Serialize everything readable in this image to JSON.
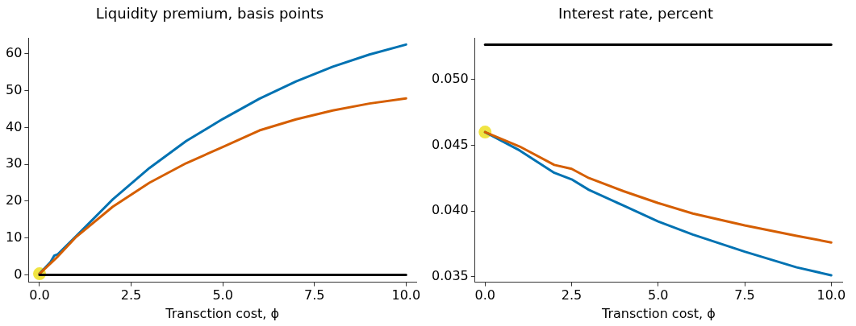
{
  "chart_data": [
    {
      "type": "line",
      "title": "Liquidity premium, basis points",
      "xlabel": "Transction cost, ϕ",
      "xlim": [
        -0.3,
        10.28
      ],
      "xticks": [
        {
          "value": 0,
          "label": "0.0"
        },
        {
          "value": 2.5,
          "label": "2.5"
        },
        {
          "value": 5,
          "label": "5.0"
        },
        {
          "value": 7.5,
          "label": "7.5"
        },
        {
          "value": 10,
          "label": "10.0"
        }
      ],
      "ylim": [
        -2,
        64.2
      ],
      "yticks": [
        0,
        10,
        20,
        30,
        40,
        50,
        60
      ],
      "grid": false,
      "legend": false,
      "series": [
        {
          "color": "#000000",
          "x": [
            0,
            10
          ],
          "values": [
            0,
            0
          ]
        },
        {
          "color": "#d55e00",
          "x": [
            0,
            0.5,
            1,
            2,
            3,
            4,
            5,
            6,
            7,
            8,
            9,
            10
          ],
          "values": [
            0.3,
            5,
            10.3,
            18.5,
            25,
            30.3,
            34.7,
            39.2,
            42.2,
            44.6,
            46.5,
            47.9
          ]
        },
        {
          "color": "#0072b2",
          "x": [
            0,
            0.3,
            0.4,
            0.5,
            1,
            2,
            3,
            4,
            5,
            6,
            7,
            8,
            9,
            10
          ],
          "values": [
            0.3,
            3.5,
            5.2,
            5.6,
            10.5,
            20.5,
            29,
            36.3,
            42.3,
            47.8,
            52.5,
            56.5,
            59.8,
            62.5
          ]
        },
        {
          "type": "scatter",
          "color": "#f0e442",
          "marker": "circle",
          "x": [
            0
          ],
          "values": [
            0.3
          ]
        }
      ]
    },
    {
      "type": "line",
      "title": "Interest rate, percent",
      "xlabel": "Transction cost, ϕ",
      "xlim": [
        -0.29,
        10.32
      ],
      "xticks": [
        {
          "value": 0,
          "label": "0.0"
        },
        {
          "value": 2.5,
          "label": "2.5"
        },
        {
          "value": 5,
          "label": "5.0"
        },
        {
          "value": 7.5,
          "label": "7.5"
        },
        {
          "value": 10,
          "label": "10.0"
        }
      ],
      "ylim": [
        0.03457,
        0.05314
      ],
      "yticks": [
        {
          "value": 0.035,
          "label": "0.035"
        },
        {
          "value": 0.04,
          "label": "0.040"
        },
        {
          "value": 0.045,
          "label": "0.045"
        },
        {
          "value": 0.05,
          "label": "0.050"
        }
      ],
      "grid": false,
      "legend": false,
      "series": [
        {
          "color": "#000000",
          "x": [
            0,
            10
          ],
          "values": [
            0.05265,
            0.05265
          ]
        },
        {
          "color": "#d55e00",
          "x": [
            0,
            1,
            2,
            2.5,
            3,
            4,
            5,
            6,
            7.5,
            9,
            10
          ],
          "values": [
            0.046,
            0.0449,
            0.0435,
            0.0432,
            0.0425,
            0.0415,
            0.0406,
            0.0398,
            0.0389,
            0.0381,
            0.0376
          ]
        },
        {
          "color": "#0072b2",
          "x": [
            0,
            1,
            2,
            2.5,
            3,
            4,
            5,
            6,
            7.5,
            9,
            10
          ],
          "values": [
            0.046,
            0.0446,
            0.0429,
            0.0424,
            0.0416,
            0.0404,
            0.0392,
            0.0382,
            0.0369,
            0.0357,
            0.0351
          ]
        },
        {
          "type": "scatter",
          "color": "#f0e442",
          "marker": "circle",
          "x": [
            0
          ],
          "values": [
            0.046
          ]
        }
      ]
    }
  ]
}
